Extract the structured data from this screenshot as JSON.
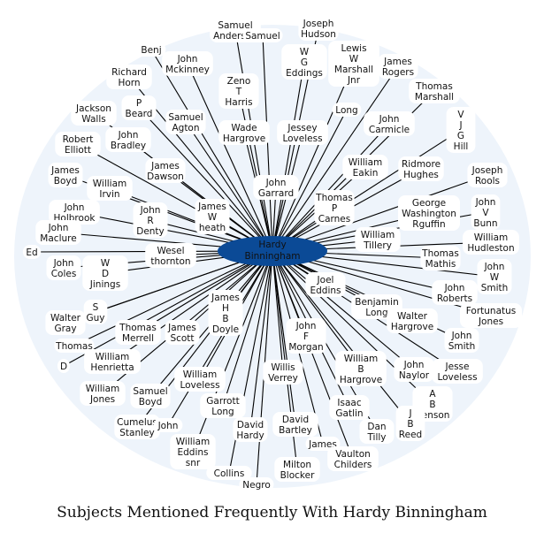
{
  "caption": "Subjects Mentioned Frequently With Hardy Binningham",
  "hub": {
    "label": [
      "Hardy",
      "Binningham"
    ],
    "color": "#0b4a96"
  },
  "colors": {
    "cloud": "#eef4fb",
    "edge": "#000000",
    "label_bg": "#ffffff"
  },
  "nodes": [
    {
      "label": [
        "Samuel",
        "Anderson"
      ]
    },
    {
      "label": [
        "Joseph",
        "Hudson"
      ]
    },
    {
      "label": [
        "Samuel"
      ]
    },
    {
      "label": [
        "Benj"
      ]
    },
    {
      "label": [
        "John",
        "Mckinney"
      ]
    },
    {
      "label": [
        "Lewis",
        "W",
        "Marshall",
        "Jnr"
      ]
    },
    {
      "label": [
        "James",
        "Rogers"
      ]
    },
    {
      "label": [
        "W",
        "G",
        "Eddings"
      ]
    },
    {
      "label": [
        "Richard",
        "Horn"
      ]
    },
    {
      "label": [
        "Zeno",
        "T",
        "Harris"
      ]
    },
    {
      "label": [
        "Thomas",
        "Marshall"
      ]
    },
    {
      "label": [
        "P",
        "Beard"
      ]
    },
    {
      "label": [
        "Jackson",
        "Walls"
      ]
    },
    {
      "label": [
        "Samuel",
        "Agton"
      ]
    },
    {
      "label": [
        "Long"
      ]
    },
    {
      "label": [
        "John",
        "Carmicle"
      ]
    },
    {
      "label": [
        "V",
        "J",
        "G",
        "Hill"
      ]
    },
    {
      "label": [
        "Wade",
        "Hargrove"
      ]
    },
    {
      "label": [
        "Jessey",
        "Loveless"
      ]
    },
    {
      "label": [
        "Robert",
        "Elliott"
      ]
    },
    {
      "label": [
        "John",
        "Bradley"
      ]
    },
    {
      "label": [
        "William",
        "Eakin"
      ]
    },
    {
      "label": [
        "Ridmore",
        "Hughes"
      ]
    },
    {
      "label": [
        "Joseph",
        "Rools"
      ]
    },
    {
      "label": [
        "James",
        "Boyd"
      ]
    },
    {
      "label": [
        "James",
        "Dawson"
      ]
    },
    {
      "label": [
        "William",
        "Irvin"
      ]
    },
    {
      "label": [
        "John",
        "Garrard"
      ]
    },
    {
      "label": [
        "Thomas",
        "P",
        "Carnes"
      ]
    },
    {
      "label": [
        "George",
        "Washington",
        "Rguffin"
      ]
    },
    {
      "label": [
        "John",
        "V",
        "Bunn"
      ]
    },
    {
      "label": [
        "John",
        "Holbrook"
      ]
    },
    {
      "label": [
        "John",
        "R",
        "Denty"
      ]
    },
    {
      "label": [
        "James",
        "W",
        "heath"
      ]
    },
    {
      "label": [
        "William",
        "Tillery"
      ]
    },
    {
      "label": [
        "William",
        "Hudleston"
      ]
    },
    {
      "label": [
        "John",
        "Maclure"
      ]
    },
    {
      "label": [
        "Ed"
      ]
    },
    {
      "label": [
        "Wesel",
        "thornton"
      ]
    },
    {
      "label": [
        "Thomas",
        "Mathis"
      ]
    },
    {
      "label": [
        "John",
        "Coles"
      ]
    },
    {
      "label": [
        "W",
        "D",
        "Jinings"
      ]
    },
    {
      "label": [
        "Joel",
        "Eddins"
      ]
    },
    {
      "label": [
        "John",
        "W",
        "Smith"
      ]
    },
    {
      "label": [
        "John",
        "Roberts"
      ]
    },
    {
      "label": [
        "Benjamin",
        "Long"
      ]
    },
    {
      "label": [
        "S",
        "Guy"
      ]
    },
    {
      "label": [
        "James",
        "H",
        "B",
        "Doyle"
      ]
    },
    {
      "label": [
        "Fortunatus",
        "Jones"
      ]
    },
    {
      "label": [
        "Walter",
        "Gray"
      ]
    },
    {
      "label": [
        "Thomas",
        "Merrell"
      ]
    },
    {
      "label": [
        "James",
        "Scott"
      ]
    },
    {
      "label": [
        "Thomas"
      ]
    },
    {
      "label": [
        "John",
        "F",
        "Morgan"
      ]
    },
    {
      "label": [
        "Walter",
        "Hargrove"
      ]
    },
    {
      "label": [
        "John",
        "Smith"
      ]
    },
    {
      "label": [
        "D"
      ]
    },
    {
      "label": [
        "William",
        "Henrietta"
      ]
    },
    {
      "label": [
        "William",
        "B",
        "Hargrove"
      ]
    },
    {
      "label": [
        "John",
        "Naylor"
      ]
    },
    {
      "label": [
        "Jesse",
        "Loveless"
      ]
    },
    {
      "label": [
        "William",
        "Jones"
      ]
    },
    {
      "label": [
        "Samuel",
        "Boyd"
      ]
    },
    {
      "label": [
        "William",
        "Loveless"
      ]
    },
    {
      "label": [
        "Willis",
        "Verrey"
      ]
    },
    {
      "label": [
        "Isaac",
        "Gatlin"
      ]
    },
    {
      "label": [
        "A",
        "B",
        "Benson"
      ]
    },
    {
      "label": [
        "Garrott",
        "Long"
      ]
    },
    {
      "label": [
        "Cumelus",
        "Stanley"
      ]
    },
    {
      "label": [
        "John"
      ]
    },
    {
      "label": [
        "J",
        "B",
        "Reed"
      ]
    },
    {
      "label": [
        "David",
        "Hardy"
      ]
    },
    {
      "label": [
        "David",
        "Bartley"
      ]
    },
    {
      "label": [
        "Dan",
        "Tilly"
      ]
    },
    {
      "label": [
        "William",
        "Eddins",
        "snr"
      ]
    },
    {
      "label": [
        "James"
      ]
    },
    {
      "label": [
        "Vaulton",
        "Childers"
      ]
    },
    {
      "label": [
        "Collins"
      ]
    },
    {
      "label": [
        "Milton",
        "Blocker"
      ]
    },
    {
      "label": [
        "Negro"
      ]
    }
  ]
}
